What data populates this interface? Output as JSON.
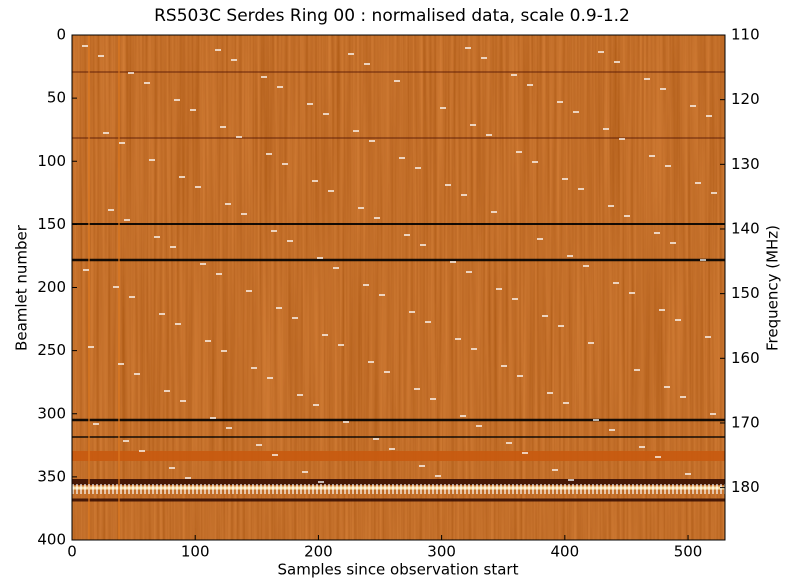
{
  "chart_data": {
    "type": "heatmap",
    "title": "RS503C Serdes Ring 00 : normalised data, scale 0.9-1.2",
    "x_label": "Samples since observation start",
    "y_label": "Beamlet number",
    "y2_label": "Frequency (MHz)",
    "xlim": [
      0,
      530
    ],
    "xticks": [
      0,
      100,
      200,
      300,
      400,
      500
    ],
    "ylim": [
      400,
      0
    ],
    "yticks": [
      0,
      50,
      100,
      150,
      200,
      250,
      300,
      350,
      400
    ],
    "y2lim": [
      188.1,
      110
    ],
    "y2ticks": [
      110,
      120,
      130,
      140,
      150,
      160,
      170,
      180
    ],
    "colormap": [
      "#000000",
      "#b8480e",
      "#ffffff"
    ]
  }
}
